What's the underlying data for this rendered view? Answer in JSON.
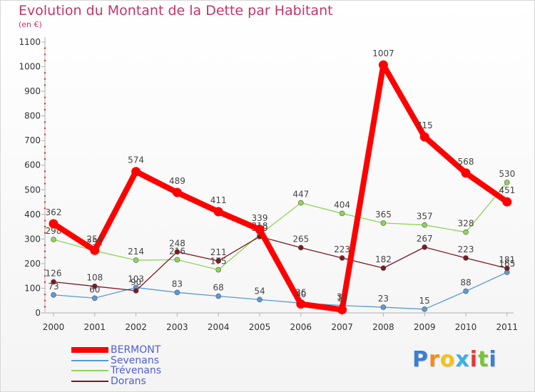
{
  "title": "Evolution du Montant de la Dette par Habitant",
  "unit_label": "(en €)",
  "chart_data": {
    "type": "line",
    "x": [
      "2000",
      "2001",
      "2002",
      "2003",
      "2004",
      "2005",
      "2006",
      "2007",
      "2008",
      "2009",
      "2010",
      "2011"
    ],
    "ylim": [
      0,
      1100
    ],
    "yticks": [
      0,
      100,
      200,
      300,
      400,
      500,
      600,
      700,
      800,
      900,
      1000,
      1100
    ],
    "grid": false,
    "legend_position": "bottom-left",
    "series": [
      {
        "name": "BERMONT",
        "color": "#ff0000",
        "values": [
          362,
          254,
          574,
          489,
          411,
          339,
          36,
          13,
          1007,
          715,
          568,
          451
        ],
        "labels": [
          "362",
          "254",
          "574",
          "489",
          "411",
          "339",
          "36",
          "13",
          "1007",
          "715",
          "568",
          "451"
        ]
      },
      {
        "name": "Sevenans",
        "color": "#5a9bd4",
        "values": [
          73,
          60,
          103,
          83,
          68,
          54,
          40,
          30,
          23,
          15,
          88,
          165
        ],
        "labels": [
          "73",
          "60",
          "103",
          "83",
          "68",
          "54",
          "40",
          "30",
          "23",
          "15",
          "88",
          "165"
        ]
      },
      {
        "name": "Trévenans",
        "color": "#8fd45a",
        "values": [
          298,
          252,
          214,
          216,
          175,
          318,
          447,
          404,
          365,
          357,
          328,
          530
        ],
        "labels": [
          "298",
          "252",
          "214",
          "216",
          "175",
          "318",
          "447",
          "404",
          "365",
          "357",
          "328",
          "530"
        ]
      },
      {
        "name": "Dorans",
        "color": "#7a1a22",
        "values": [
          126,
          108,
          90,
          248,
          211,
          310,
          265,
          223,
          182,
          267,
          223,
          181
        ],
        "labels": [
          "126",
          "108",
          "90",
          "248",
          "211",
          "310",
          "265",
          "223",
          "182",
          "267",
          "223",
          "181"
        ]
      }
    ]
  },
  "logo": {
    "text": "Proxiti",
    "letters": [
      "P",
      "r",
      "o",
      "x",
      "i",
      "t",
      "i"
    ],
    "colors": [
      "#3a7fd0",
      "#f28c1e",
      "#f2c21e",
      "#3ab0e8",
      "#e03a3a",
      "#7ac23a",
      "#3a7fd0"
    ]
  }
}
